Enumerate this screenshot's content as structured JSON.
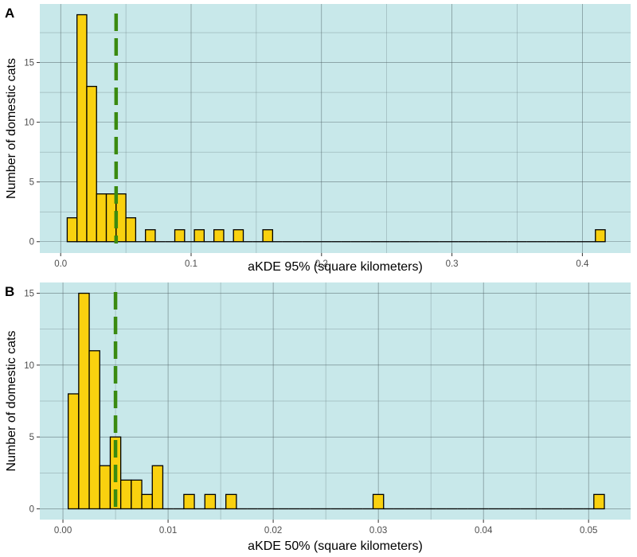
{
  "colors": {
    "panel_background": "#c8e8ea",
    "bar_fill": "#f9d10f",
    "bar_outline": "#000000",
    "reference_line": "#3a8a10",
    "grid": "#4a5a5e"
  },
  "chart_data": [
    {
      "type": "bar",
      "panel_label": "A",
      "title": "",
      "xlabel": "aKDE 95% (square kilometers)",
      "ylabel": "Number of domestic cats",
      "xlim": [
        -0.016,
        0.437
      ],
      "ylim": [
        -0.95,
        19.9
      ],
      "x_ticks": [
        0.0,
        0.1,
        0.2,
        0.3,
        0.4
      ],
      "x_tick_labels": [
        "0.0",
        "0.1",
        "0.2",
        "0.3",
        "0.4"
      ],
      "y_ticks": [
        0,
        5,
        10,
        15
      ],
      "y_tick_labels": [
        "0",
        "5",
        "10",
        "15"
      ],
      "grid": true,
      "bin_width": 0.0075,
      "bin_starts": [
        0.005,
        0.0125,
        0.02,
        0.0275,
        0.035,
        0.0425,
        0.05,
        0.0575,
        0.065,
        0.0725,
        0.08,
        0.0875,
        0.095,
        0.1025,
        0.11,
        0.1175,
        0.125,
        0.1325,
        0.14,
        0.1475,
        0.155,
        0.1625,
        0.17,
        0.1775,
        0.185,
        0.1925,
        0.2,
        0.2075,
        0.215,
        0.2225,
        0.23,
        0.2375,
        0.245,
        0.2525,
        0.26,
        0.2675,
        0.275,
        0.2825,
        0.29,
        0.2975,
        0.305,
        0.3125,
        0.32,
        0.3275,
        0.335,
        0.3425,
        0.35,
        0.3575,
        0.365,
        0.3725,
        0.38,
        0.3875,
        0.395,
        0.4025,
        0.41
      ],
      "counts": [
        2,
        19,
        13,
        4,
        4,
        4,
        2,
        0,
        1,
        0,
        0,
        1,
        0,
        1,
        0,
        1,
        0,
        1,
        0,
        0,
        1,
        0,
        0,
        0,
        0,
        0,
        0,
        0,
        0,
        0,
        0,
        0,
        0,
        0,
        0,
        0,
        0,
        0,
        0,
        0,
        0,
        0,
        0,
        0,
        0,
        0,
        0,
        0,
        0,
        0,
        0,
        0,
        0,
        0,
        1
      ],
      "reference_line_x": 0.0425
    },
    {
      "type": "bar",
      "panel_label": "B",
      "title": "",
      "xlabel": "aKDE 50% (square kilometers)",
      "ylabel": "Number of domestic cats",
      "xlim": [
        -0.0022,
        0.054
      ],
      "ylim": [
        -0.75,
        15.75
      ],
      "x_ticks": [
        0.0,
        0.01,
        0.02,
        0.03,
        0.04,
        0.05
      ],
      "x_tick_labels": [
        "0.00",
        "0.01",
        "0.02",
        "0.03",
        "0.04",
        "0.05"
      ],
      "y_ticks": [
        0,
        5,
        10,
        15
      ],
      "y_tick_labels": [
        "0",
        "5",
        "10",
        "15"
      ],
      "grid": true,
      "bin_width": 0.001,
      "bin_starts": [
        0.0005,
        0.0015,
        0.0025,
        0.0035,
        0.0045,
        0.0055,
        0.0065,
        0.0075,
        0.0085,
        0.0095,
        0.0105,
        0.0115,
        0.0125,
        0.0135,
        0.0145,
        0.0155,
        0.0165,
        0.0175,
        0.0185,
        0.0195,
        0.0205,
        0.0215,
        0.0225,
        0.0235,
        0.0245,
        0.0255,
        0.0265,
        0.0275,
        0.0285,
        0.0295,
        0.0305,
        0.0315,
        0.0325,
        0.0335,
        0.0345,
        0.0355,
        0.0365,
        0.0375,
        0.0385,
        0.0395,
        0.0405,
        0.0415,
        0.0425,
        0.0435,
        0.0445,
        0.0455,
        0.0465,
        0.0475,
        0.0485,
        0.0495,
        0.0505
      ],
      "counts": [
        8,
        15,
        11,
        3,
        5,
        2,
        2,
        1,
        3,
        0,
        0,
        1,
        0,
        1,
        0,
        1,
        0,
        0,
        0,
        0,
        0,
        0,
        0,
        0,
        0,
        0,
        0,
        0,
        0,
        1,
        0,
        0,
        0,
        0,
        0,
        0,
        0,
        0,
        0,
        0,
        0,
        0,
        0,
        0,
        0,
        0,
        0,
        0,
        0,
        0,
        1
      ],
      "reference_line_x": 0.005
    }
  ]
}
